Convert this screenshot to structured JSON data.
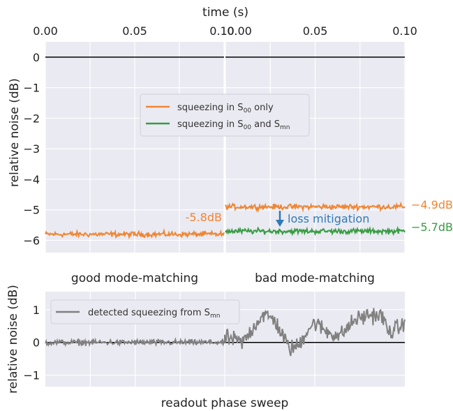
{
  "chart_data": [
    {
      "type": "line",
      "panel": "top-left",
      "xlabel": "time (s)",
      "ylabel": "relative noise (dB)",
      "xlim": [
        0.0,
        0.1
      ],
      "ylim": [
        -6.4,
        0.5
      ],
      "xticks": [
        "0.00",
        "0.05",
        "0.10"
      ],
      "yticks": [
        "0",
        "−1",
        "−2",
        "−3",
        "−4",
        "−5",
        "−6"
      ],
      "grid": true,
      "series": [
        {
          "name": "squeezing in S00 only",
          "color": "#ef8633",
          "mean": -5.8,
          "noise": 0.06
        },
        {
          "name": "zero reference",
          "color": "#000000",
          "mean": 0.0
        }
      ],
      "annotations": [
        {
          "text": "-5.8dB",
          "color": "#ef8633"
        }
      ],
      "caption": "good mode-matching"
    },
    {
      "type": "line",
      "panel": "top-right",
      "xlabel": "time (s)",
      "xlim": [
        0.0,
        0.1
      ],
      "ylim": [
        -6.4,
        0.5
      ],
      "xticks": [
        "0.00",
        "0.05",
        "0.10"
      ],
      "grid": true,
      "legend": {
        "placement": "center",
        "entries": [
          {
            "label": "squeezing in S",
            "sub": "00",
            "suffix": " only",
            "color": "#ef8633"
          },
          {
            "label": "squeezing in S",
            "sub": "00",
            "mid": " and S",
            "sub2": "mn",
            "color": "#389c43"
          }
        ]
      },
      "series": [
        {
          "name": "squeezing in S00 only",
          "color": "#ef8633",
          "mean": -4.9,
          "noise": 0.06
        },
        {
          "name": "squeezing in S00 and Smn",
          "color": "#389c43",
          "mean": -5.7,
          "noise": 0.06
        },
        {
          "name": "zero reference",
          "color": "#000000",
          "mean": 0.0
        }
      ],
      "annotations": [
        {
          "text": "−4.9dB",
          "color": "#ef8633"
        },
        {
          "text": "−5.7dB",
          "color": "#389c43"
        },
        {
          "text": "loss mitigation",
          "color": "#2f79b5",
          "arrow": "down"
        }
      ],
      "caption": "bad mode-matching"
    },
    {
      "type": "line",
      "panel": "bottom",
      "xlabel": "readout phase sweep",
      "ylabel": "relative noise (dB)",
      "ylim": [
        -1.35,
        1.55
      ],
      "yticks": [
        "1",
        "0",
        "−1"
      ],
      "grid": true,
      "legend": {
        "placement": "top-left",
        "entries": [
          {
            "label": "detected squeezing from S",
            "sub": "mn",
            "color": "#808080"
          }
        ]
      },
      "series": [
        {
          "name": "detected squeezing from Smn",
          "color": "#808080",
          "left_mean": 0.0,
          "left_noise": 0.06,
          "right_keypoints": [
            [
              0.0,
              0.15
            ],
            [
              0.2,
              0.0
            ],
            [
              0.42,
              0.85
            ],
            [
              0.55,
              0.7
            ],
            [
              0.72,
              -0.2
            ],
            [
              0.82,
              -0.1
            ],
            [
              0.92,
              0.4
            ],
            [
              1.0,
              0.6
            ],
            [
              1.12,
              0.35
            ],
            [
              1.28,
              0.2
            ],
            [
              1.45,
              0.7
            ],
            [
              1.62,
              0.85
            ],
            [
              1.75,
              0.8
            ],
            [
              1.82,
              0.3
            ],
            [
              2.0,
              0.55
            ]
          ]
        },
        {
          "name": "zero reference",
          "color": "#000000",
          "mean": 0.0
        }
      ]
    }
  ]
}
